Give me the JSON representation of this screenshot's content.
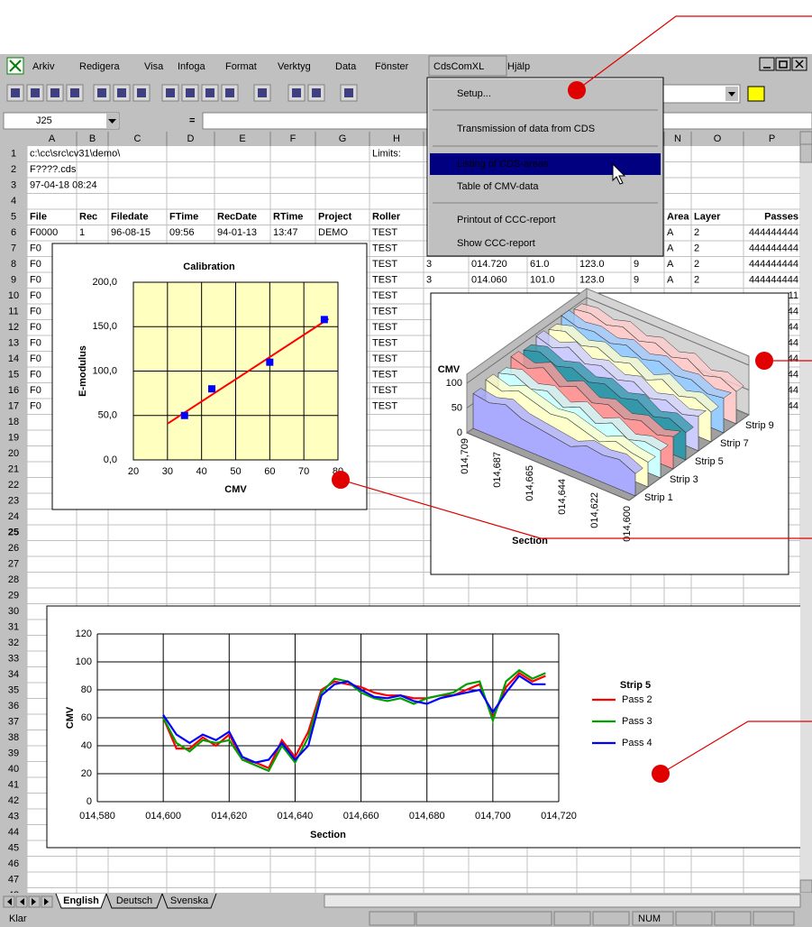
{
  "menu": {
    "items": [
      "Arkiv",
      "Redigera",
      "Visa",
      "Infoga",
      "Format",
      "Verktyg",
      "Data",
      "Fönster",
      "CdsComXL",
      "Hjälp"
    ],
    "dropdown": [
      "Setup...",
      "Transmission of data from CDS",
      "Listing of CDS-areas",
      "Table of CMV-data",
      "Printout of CCC-report",
      "Show CCC-report"
    ]
  },
  "formula_bar": {
    "name_box": "J25",
    "equals": "="
  },
  "sheet": {
    "columns": [
      "A",
      "B",
      "C",
      "D",
      "E",
      "F",
      "G",
      "H",
      "I",
      "J",
      "K",
      "L",
      "M",
      "N",
      "O",
      "P"
    ],
    "row_numbers": [
      1,
      2,
      3,
      4,
      5,
      6,
      7,
      8,
      9,
      10,
      11,
      12,
      13,
      14,
      15,
      16,
      17,
      18,
      19,
      20,
      21,
      22,
      23,
      24,
      25,
      26,
      27,
      28,
      29,
      30,
      31,
      32,
      33,
      34,
      35,
      36,
      37,
      38,
      39,
      40,
      41,
      42,
      43,
      44,
      45,
      46,
      47,
      48
    ],
    "rows": [
      [
        "c:\\cc\\src\\cv31\\demo\\",
        null,
        null,
        null,
        null,
        null,
        null,
        "Limits:",
        null,
        null,
        null,
        null,
        null,
        null,
        null,
        null
      ],
      [
        "F????.cds",
        null,
        null,
        null,
        null,
        null,
        null,
        null,
        null,
        null,
        null,
        null,
        null,
        null,
        null,
        null
      ],
      [
        "97-04-18 08:24",
        null,
        null,
        null,
        null,
        null,
        null,
        null,
        null,
        null,
        null,
        null,
        null,
        null,
        null,
        null
      ],
      [
        null,
        null,
        null,
        null,
        null,
        null,
        null,
        null,
        null,
        null,
        null,
        null,
        null,
        null,
        null,
        null
      ],
      [
        "File",
        "Rec",
        "Filedate",
        "FTime",
        "RecDate",
        "RTime",
        "Project",
        "Roller",
        null,
        null,
        null,
        null,
        null,
        "Area",
        "Layer",
        "Passes"
      ],
      [
        "F0000",
        "1",
        "96-08-15",
        "09:56",
        "94-01-13",
        "13:47",
        "DEMO",
        "TEST",
        null,
        null,
        null,
        null,
        null,
        "A",
        "2",
        "444444444"
      ],
      [
        "F0",
        null,
        null,
        null,
        null,
        null,
        null,
        "TEST",
        null,
        null,
        null,
        null,
        null,
        "A",
        "2",
        "444444444"
      ],
      [
        "F0",
        null,
        null,
        null,
        null,
        null,
        null,
        "TEST",
        "3",
        "014.720",
        "61.0",
        "123.0",
        "9",
        "A",
        "2",
        "444444444"
      ],
      [
        "F0",
        null,
        null,
        null,
        null,
        null,
        null,
        "TEST",
        "3",
        "014.060",
        "101.0",
        "123.0",
        "9",
        "A",
        "2",
        "444444444"
      ],
      [
        "F0",
        null,
        null,
        null,
        null,
        null,
        null,
        "TEST",
        null,
        null,
        null,
        null,
        null,
        null,
        null,
        "11"
      ],
      [
        "F0",
        null,
        null,
        null,
        null,
        null,
        null,
        "TEST",
        null,
        null,
        null,
        null,
        null,
        null,
        null,
        "44"
      ],
      [
        "F0",
        null,
        null,
        null,
        null,
        null,
        null,
        "TEST",
        null,
        null,
        null,
        null,
        null,
        null,
        null,
        "44"
      ],
      [
        "F0",
        null,
        null,
        null,
        null,
        null,
        null,
        "TEST",
        null,
        null,
        null,
        null,
        null,
        null,
        null,
        "44"
      ],
      [
        "F0",
        null,
        null,
        null,
        null,
        null,
        null,
        "TEST",
        null,
        null,
        null,
        null,
        null,
        null,
        null,
        "44"
      ],
      [
        "F0",
        null,
        null,
        null,
        null,
        null,
        null,
        "TEST",
        null,
        null,
        null,
        null,
        null,
        null,
        null,
        "44"
      ],
      [
        "F0",
        null,
        null,
        null,
        null,
        null,
        null,
        "TEST",
        null,
        null,
        null,
        null,
        null,
        null,
        null,
        "44"
      ],
      [
        "F0",
        null,
        null,
        null,
        null,
        null,
        null,
        "TEST",
        null,
        null,
        null,
        null,
        null,
        null,
        null,
        "44"
      ]
    ]
  },
  "chart_data": [
    {
      "type": "scatter",
      "title": "Calibration",
      "xlabel": "CMV",
      "ylabel": "E-modulus",
      "x": [
        35,
        43,
        60,
        76
      ],
      "y": [
        50,
        80,
        110,
        158
      ],
      "color": "#0000ff",
      "trendline": "linear",
      "trendline_color": "#ff0000",
      "xlim": [
        20,
        80
      ],
      "xticks": [
        20,
        30,
        40,
        50,
        60,
        70,
        80
      ],
      "ylim": [
        0,
        200
      ],
      "yticks": [
        {
          "value": 0,
          "label": "0,0"
        },
        {
          "value": 50,
          "label": "50,0"
        },
        {
          "value": 100,
          "label": "100,0"
        },
        {
          "value": 150,
          "label": "150,0"
        },
        {
          "value": 200,
          "label": "200,0"
        }
      ],
      "grid": true,
      "background": "#ffffc0"
    },
    {
      "type": "area3d",
      "ylabel": "CMV",
      "xlabel": "Section",
      "categories": [
        "014,709",
        null,
        "014,687",
        null,
        "014,665",
        null,
        "014,644",
        null,
        "014,622",
        null,
        "014,600"
      ],
      "ylim": [
        0,
        100
      ],
      "yticks": [
        0,
        50,
        100
      ],
      "series": [
        {
          "name": "Strip 1",
          "color": "#aaaaff",
          "values": [
            70,
            65,
            75,
            60,
            55,
            50,
            45,
            60,
            55,
            60,
            45
          ]
        },
        {
          "color": "#ffffcc",
          "values": [
            80,
            70,
            85,
            75,
            65,
            70,
            60,
            50,
            65,
            55,
            50
          ]
        },
        {
          "name": "Strip 3",
          "color": "#ccffff",
          "values": [
            75,
            85,
            70,
            80,
            60,
            75,
            55,
            70,
            50,
            60,
            55
          ]
        },
        {
          "color": "#ff9999",
          "values": [
            90,
            80,
            95,
            70,
            85,
            65,
            75,
            60,
            70,
            55,
            65
          ]
        },
        {
          "name": "Strip 5",
          "color": "#3399aa",
          "values": [
            85,
            95,
            80,
            90,
            75,
            85,
            70,
            80,
            60,
            70,
            55
          ]
        },
        {
          "color": "#ccccff",
          "values": [
            95,
            85,
            100,
            80,
            90,
            75,
            85,
            65,
            75,
            60,
            70
          ]
        },
        {
          "name": "Strip 7",
          "color": "#ffffcc",
          "values": [
            90,
            100,
            85,
            95,
            80,
            90,
            70,
            85,
            65,
            75,
            60
          ]
        },
        {
          "color": "#99ccff",
          "values": [
            100,
            90,
            95,
            85,
            95,
            80,
            90,
            75,
            80,
            65,
            70
          ]
        },
        {
          "name": "Strip 9",
          "color": "#ffcccc",
          "values": [
            95,
            100,
            90,
            100,
            85,
            95,
            80,
            90,
            70,
            80,
            65
          ]
        }
      ]
    },
    {
      "type": "line",
      "ylabel": "CMV",
      "xlabel": "Section",
      "legend_title": "Strip 5",
      "legend": "right",
      "grid": true,
      "x": [
        14.6,
        14.604,
        14.608,
        14.612,
        14.616,
        14.62,
        14.624,
        14.628,
        14.632,
        14.636,
        14.64,
        14.644,
        14.648,
        14.652,
        14.656,
        14.66,
        14.664,
        14.668,
        14.672,
        14.676,
        14.68,
        14.684,
        14.688,
        14.692,
        14.696,
        14.7,
        14.704,
        14.708,
        14.712,
        14.716
      ],
      "series": [
        {
          "name": "Pass 2",
          "color": "#ff0000",
          "values": [
            60,
            38,
            38,
            46,
            40,
            48,
            30,
            28,
            24,
            44,
            32,
            50,
            80,
            86,
            84,
            82,
            78,
            76,
            76,
            74,
            74,
            76,
            76,
            80,
            84,
            60,
            82,
            92,
            86,
            90
          ]
        },
        {
          "name": "Pass 3",
          "color": "#00a000",
          "values": [
            60,
            42,
            36,
            44,
            42,
            44,
            30,
            26,
            22,
            40,
            28,
            46,
            78,
            88,
            86,
            78,
            74,
            72,
            74,
            70,
            74,
            76,
            78,
            84,
            86,
            58,
            86,
            94,
            88,
            92
          ]
        },
        {
          "name": "Pass 4",
          "color": "#0000ff",
          "values": [
            62,
            48,
            42,
            48,
            44,
            50,
            32,
            28,
            30,
            42,
            30,
            40,
            76,
            84,
            86,
            80,
            75,
            74,
            76,
            72,
            70,
            74,
            76,
            78,
            80,
            64,
            78,
            90,
            84,
            84
          ]
        }
      ],
      "xlim": [
        14.58,
        14.72
      ],
      "xticks": [
        {
          "value": 14.58,
          "label": "014,580"
        },
        {
          "value": 14.6,
          "label": "014,600"
        },
        {
          "value": 14.62,
          "label": "014,620"
        },
        {
          "value": 14.64,
          "label": "014,640"
        },
        {
          "value": 14.66,
          "label": "014,660"
        },
        {
          "value": 14.68,
          "label": "014,680"
        },
        {
          "value": 14.7,
          "label": "014,700"
        },
        {
          "value": 14.72,
          "label": "014,720"
        }
      ],
      "ylim": [
        0,
        120
      ],
      "yticks": [
        0,
        20,
        40,
        60,
        80,
        100,
        120
      ]
    }
  ],
  "sheet_tabs": [
    "English",
    "Deutsch",
    "Svenska"
  ],
  "status_bar": {
    "left": "Klar",
    "num": "NUM"
  }
}
